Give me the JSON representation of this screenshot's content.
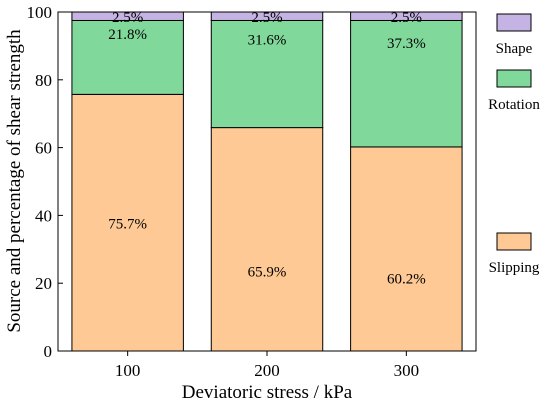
{
  "chart_data": {
    "type": "bar",
    "stacked": true,
    "categories": [
      "100",
      "200",
      "300"
    ],
    "xlabel": "Deviatoric stress / kPa",
    "ylabel": "Source and percentage of shear strength",
    "ylim": [
      0,
      100
    ],
    "yticks": [
      "0",
      "20",
      "40",
      "60",
      "80",
      "100"
    ],
    "grid": false,
    "legend_position": "right",
    "series": [
      {
        "name": "Slipping",
        "values": [
          75.7,
          65.9,
          60.2
        ],
        "labels": [
          "75.7%",
          "65.9%",
          "60.2%"
        ],
        "color": "#fec994"
      },
      {
        "name": "Rotation",
        "values": [
          21.8,
          31.6,
          37.3
        ],
        "labels": [
          "21.8%",
          "31.6%",
          "37.3%"
        ],
        "color": "#80d99a"
      },
      {
        "name": "Shape",
        "values": [
          2.5,
          2.5,
          2.5
        ],
        "labels": [
          "2.5%",
          "2.5%",
          "2.5%"
        ],
        "color": "#c5b4e3"
      }
    ]
  }
}
